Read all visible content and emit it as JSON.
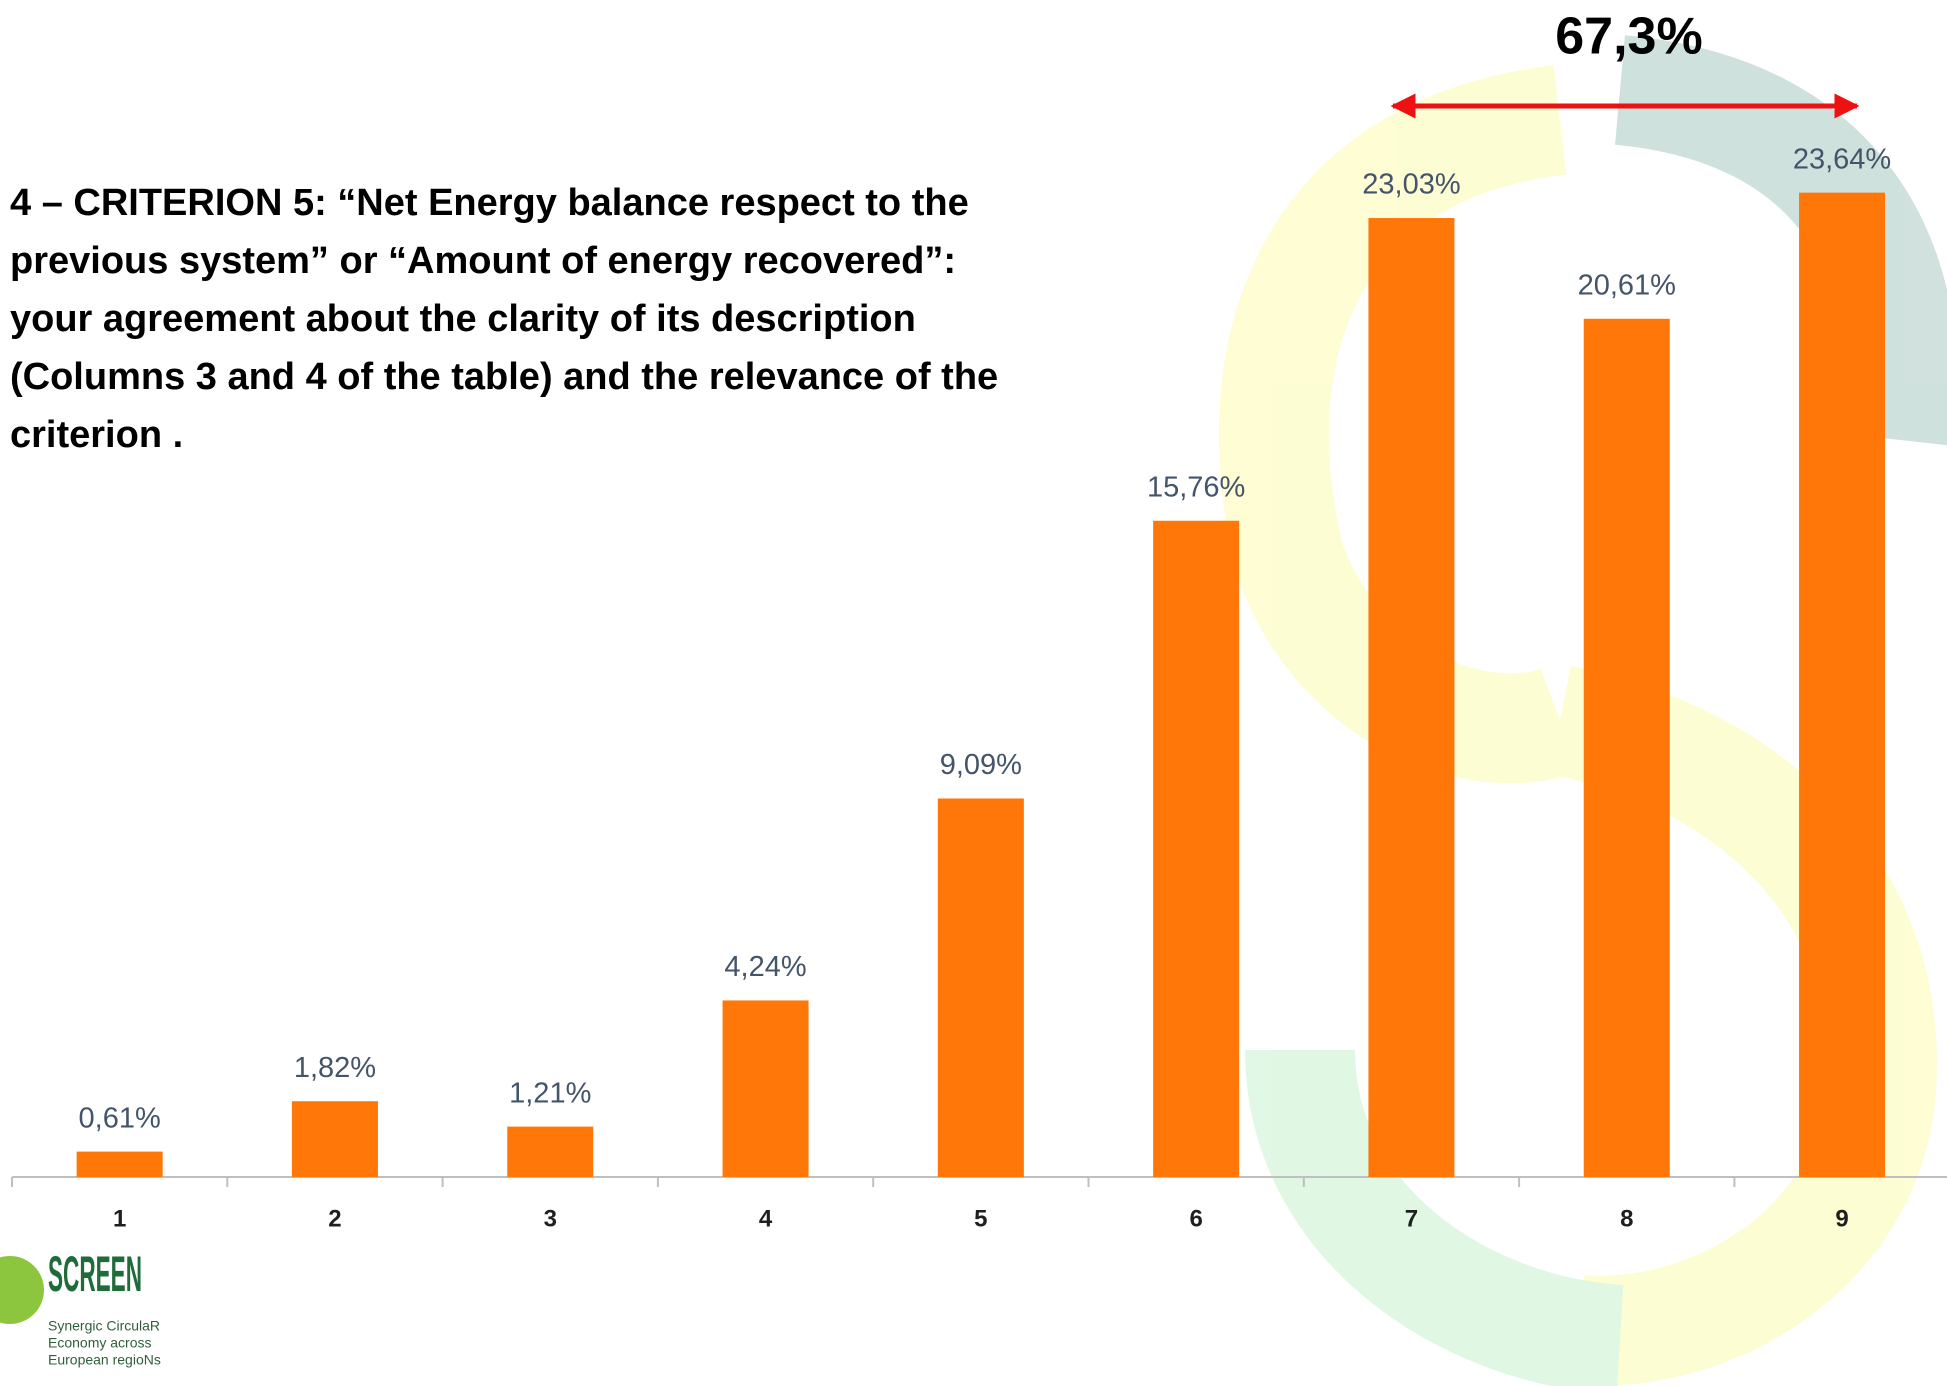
{
  "chart_data": {
    "type": "bar",
    "title": [
      "4 –  CRITERION 5: “Net Energy balance respect to the",
      "previous system” or “Amount of energy recovered”:",
      "your agreement about the clarity of its description",
      "(Columns 3 and 4  of the table) and the relevance of the",
      "criterion ."
    ],
    "annotation": "67,3%",
    "categories": [
      "1",
      "2",
      "3",
      "4",
      "5",
      "6",
      "7",
      "8",
      "9"
    ],
    "values": [
      0.61,
      1.82,
      1.21,
      4.24,
      9.09,
      15.76,
      23.03,
      20.61,
      23.64
    ],
    "value_labels": [
      "0,61%",
      "1,82%",
      "1,21%",
      "4,24%",
      "9,09%",
      "15,76%",
      "23,03%",
      "20,61%",
      "23,64%"
    ],
    "color": "#ff7708",
    "ylim": [
      0,
      25
    ]
  },
  "logo": {
    "name": "SCREEN",
    "tagline": [
      "Synergic CirculaR",
      "Economy across",
      "European regioNs"
    ]
  }
}
